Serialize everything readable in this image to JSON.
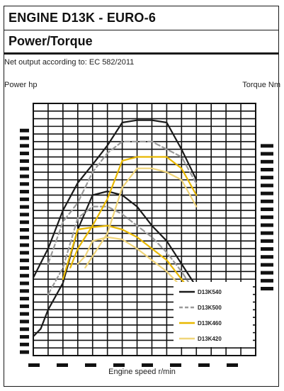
{
  "header": {
    "title": "ENGINE D13K - EURO-6",
    "subtitle": "Power/Torque",
    "note": "Net output according to: EC 582/2011"
  },
  "chart_data": {
    "type": "line",
    "xlabel": "Engine speed r/min",
    "ylabel_left": "Power hp",
    "ylabel_right": "Torque Nm",
    "xlim": [
      0,
      15
    ],
    "ylim": [
      0,
      33
    ],
    "grid": true,
    "legend_position": "bottom-right",
    "series": [
      {
        "name": "D13K540",
        "color": "#1a1a1a",
        "dash": "none",
        "power": [
          [
            0,
            10.2
          ],
          [
            1,
            14
          ],
          [
            2,
            19
          ],
          [
            3,
            22.6
          ],
          [
            4,
            25
          ],
          [
            5,
            27.5
          ],
          [
            6,
            30.5
          ],
          [
            7,
            30.8
          ],
          [
            8,
            30.8
          ],
          [
            9,
            30.5
          ],
          [
            10,
            27
          ],
          [
            11,
            23
          ]
        ],
        "torque": [
          [
            0,
            2.5
          ],
          [
            0.5,
            3.5
          ],
          [
            1,
            6
          ],
          [
            2,
            9.5
          ],
          [
            3,
            16.5
          ],
          [
            4,
            21
          ],
          [
            5,
            21.5
          ],
          [
            6,
            21
          ],
          [
            7,
            19.5
          ],
          [
            8,
            17
          ],
          [
            9,
            15
          ],
          [
            10,
            12
          ],
          [
            11,
            9
          ]
        ]
      },
      {
        "name": "D13K500",
        "color": "#9a9a9a",
        "dash": "7,4",
        "power": [
          [
            1,
            12
          ],
          [
            2,
            17.5
          ],
          [
            3,
            20
          ],
          [
            4,
            24
          ],
          [
            5,
            26.5
          ],
          [
            6,
            28
          ],
          [
            7,
            28
          ],
          [
            8,
            28
          ],
          [
            9,
            27
          ],
          [
            10,
            26
          ],
          [
            11,
            22.5
          ]
        ],
        "torque": [
          [
            1,
            8
          ],
          [
            2,
            11.5
          ],
          [
            3,
            18
          ],
          [
            4,
            19.5
          ],
          [
            5,
            19.5
          ],
          [
            6,
            18.5
          ],
          [
            7,
            17
          ],
          [
            8,
            15.5
          ],
          [
            9,
            13.5
          ],
          [
            10,
            11
          ],
          [
            11,
            8
          ]
        ]
      },
      {
        "name": "D13K460",
        "color": "#e8b800",
        "dash": "none",
        "power": [
          [
            2.5,
            11.5
          ],
          [
            3,
            14
          ],
          [
            4,
            17
          ],
          [
            5,
            20.5
          ],
          [
            6,
            25.5
          ],
          [
            7,
            26
          ],
          [
            8,
            26
          ],
          [
            9,
            26
          ],
          [
            10,
            24.5
          ],
          [
            11,
            21
          ]
        ],
        "torque": [
          [
            2,
            10
          ],
          [
            3,
            16.5
          ],
          [
            4,
            16.8
          ],
          [
            5,
            17
          ],
          [
            6,
            16.5
          ],
          [
            7,
            15.5
          ],
          [
            8,
            14
          ],
          [
            9,
            12.5
          ],
          [
            10,
            10
          ],
          [
            11,
            7.5
          ]
        ]
      },
      {
        "name": "D13K420",
        "color": "#f0d57a",
        "dash": "none",
        "power": [
          [
            3.5,
            11.5
          ],
          [
            4,
            13
          ],
          [
            5,
            16
          ],
          [
            6,
            22
          ],
          [
            7,
            24.5
          ],
          [
            8,
            24.5
          ],
          [
            9,
            24
          ],
          [
            10,
            23
          ],
          [
            11,
            19.5
          ]
        ],
        "torque": [
          [
            3,
            12
          ],
          [
            3.5,
            13
          ],
          [
            4,
            15
          ],
          [
            5,
            15.5
          ],
          [
            6,
            15.2
          ],
          [
            7,
            14
          ],
          [
            8,
            12.5
          ],
          [
            9,
            11
          ],
          [
            10,
            9
          ],
          [
            11,
            7
          ]
        ]
      }
    ]
  }
}
